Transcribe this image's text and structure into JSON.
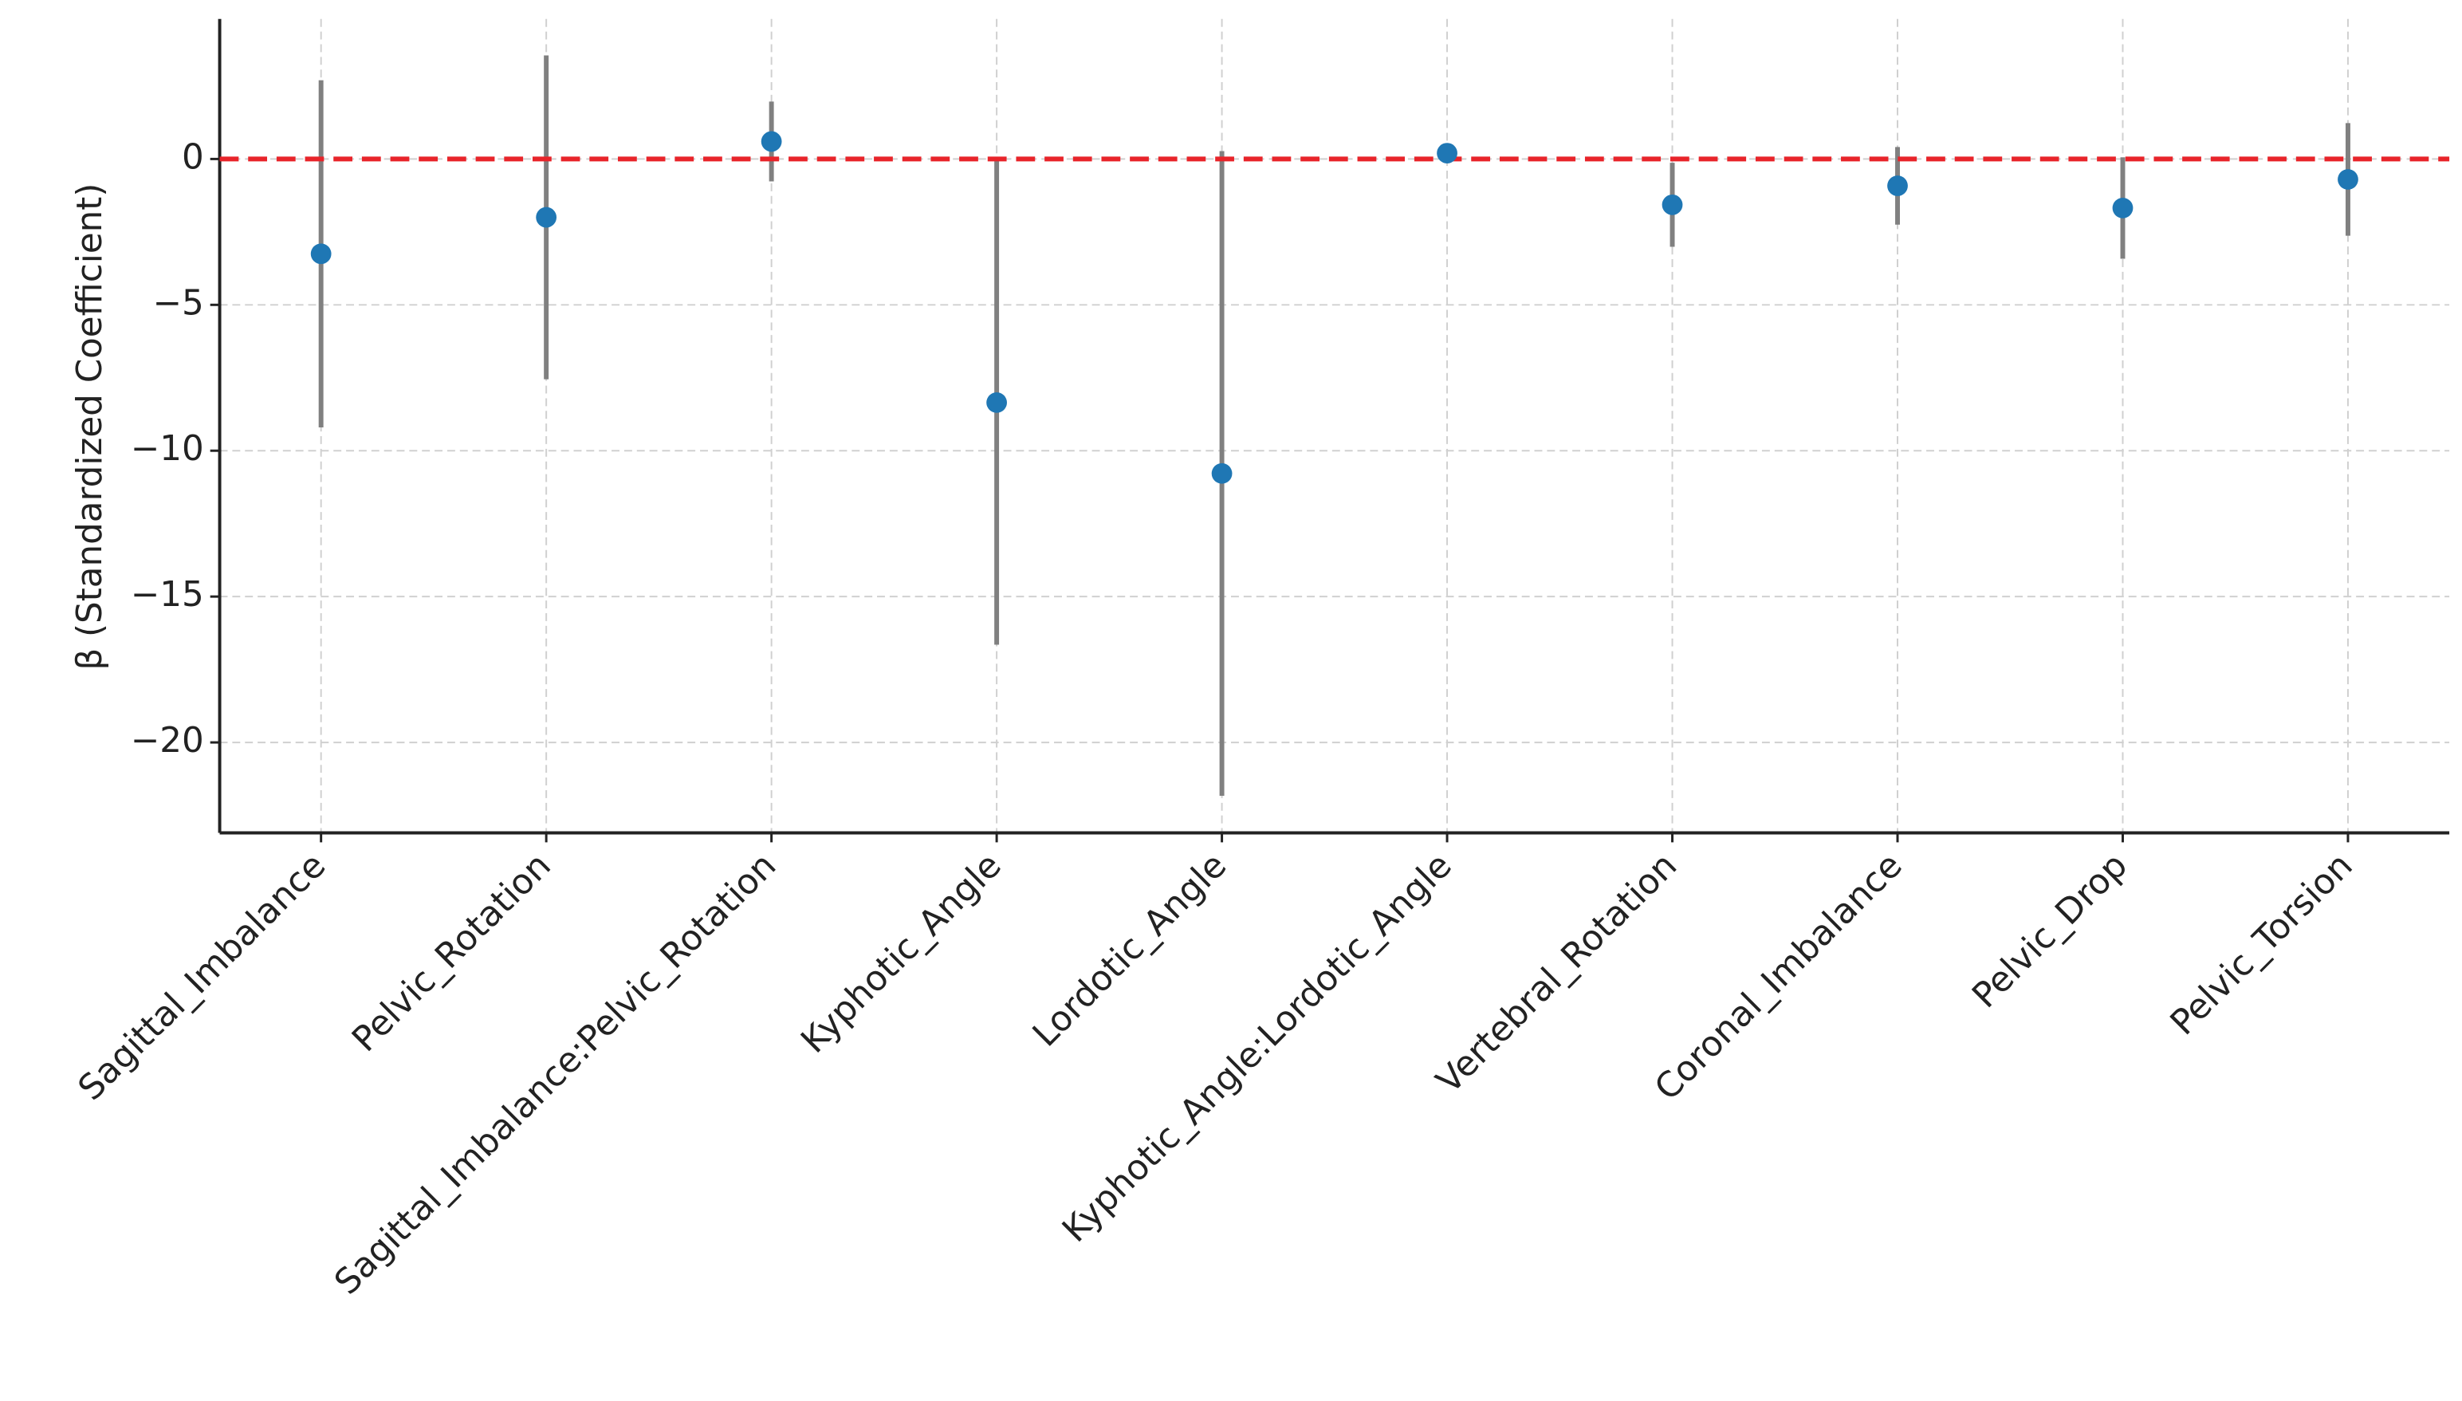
{
  "chart_data": {
    "type": "errorbar",
    "ylabel": "β (Standardized Coefficient)",
    "categories": [
      "Sagittal_Imbalance",
      "Pelvic_Rotation",
      "Sagittal_Imbalance:Pelvic_Rotation",
      "Kyphotic_Angle",
      "Lordotic_Angle",
      "Kyphotic_Angle:Lordotic_Angle",
      "Vertebral_Rotation",
      "Coronal_Imbalance",
      "Pelvic_Drop",
      "Pelvic_Torsion"
    ],
    "values": [
      -3.25,
      -2.0,
      0.6,
      -8.35,
      -10.78,
      0.2,
      -1.57,
      -0.92,
      -1.68,
      -0.7
    ],
    "errors": [
      5.95,
      5.55,
      1.37,
      8.3,
      11.05,
      0.2,
      1.44,
      1.33,
      1.74,
      1.93
    ],
    "color": "#1f77b4",
    "error_color": "#808080",
    "reference_line": {
      "value": 0,
      "color": "#e8242a"
    },
    "ylim": [
      -23.1,
      4.8
    ],
    "yticks": [
      0,
      {
        "value": -5,
        "label": "−5"
      },
      {
        "value": -10,
        "label": "−10"
      },
      {
        "value": -15,
        "label": "−15"
      },
      {
        "value": -20,
        "label": "−20"
      }
    ],
    "grid": true
  }
}
